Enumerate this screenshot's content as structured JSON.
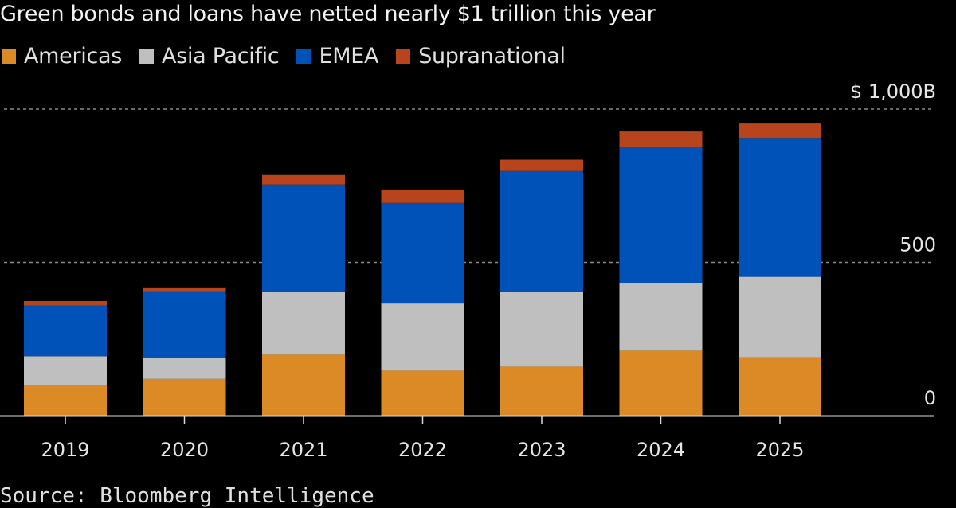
{
  "chart_data": {
    "type": "bar",
    "stacked": true,
    "title": "Green bonds and loans have netted nearly $1 trillion this year",
    "source": "Source: Bloomberg Intelligence",
    "xlabel": "",
    "ylabel": "",
    "ylim": [
      0,
      1000
    ],
    "y_ticks": [
      {
        "value": 0,
        "label": "0"
      },
      {
        "value": 500,
        "label": "500"
      },
      {
        "value": 1000,
        "label": "$ 1,000B"
      }
    ],
    "grid": true,
    "legend_position": "top-left",
    "categories": [
      "2019",
      "2020",
      "2021",
      "2022",
      "2023",
      "2024",
      "2025"
    ],
    "series": [
      {
        "name": "Americas",
        "color": "#DB8A26",
        "values": [
          100,
          120,
          199,
          147,
          160,
          212,
          191
        ]
      },
      {
        "name": "Asia Pacific",
        "color": "#BFBFBF",
        "values": [
          94,
          68,
          204,
          219,
          243,
          220,
          262
        ]
      },
      {
        "name": "EMEA",
        "color": "#0052B8",
        "values": [
          165,
          215,
          351,
          328,
          395,
          445,
          453
        ]
      },
      {
        "name": "Supranational",
        "color": "#B8441E",
        "values": [
          15,
          13,
          31,
          44,
          37,
          50,
          47
        ]
      }
    ]
  }
}
